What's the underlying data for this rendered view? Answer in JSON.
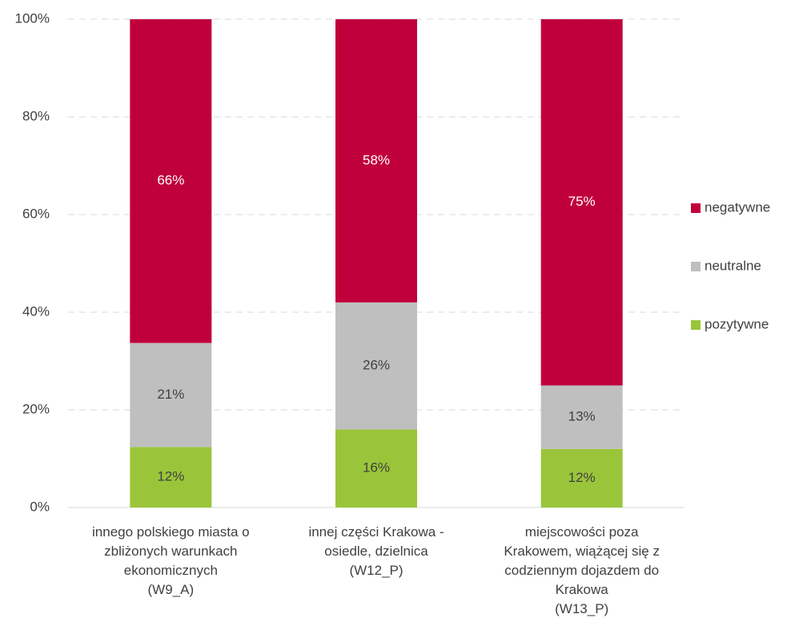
{
  "chart_data": {
    "type": "stacked_bar",
    "categories": [
      [
        "innego polskiego miasta o",
        "zbliżonych warunkach",
        "ekonomicznych",
        "(W9_A)"
      ],
      [
        "innej części Krakowa -",
        "osiedle, dzielnica",
        "(W12_P)"
      ],
      [
        "miejscowości poza",
        "Krakowem, wiążącej się z",
        "codziennym dojazdem do",
        "Krakowa",
        "(W13_P)"
      ]
    ],
    "series": [
      {
        "name": "pozytywne",
        "color": "#9ac53a",
        "values": [
          12.4,
          16,
          12
        ],
        "value_labels": [
          "12%",
          "16%",
          "12%"
        ]
      },
      {
        "name": "neutralne",
        "color": "#bfbfbf",
        "values": [
          21.3,
          26,
          13
        ],
        "value_labels": [
          "21%",
          "26%",
          "13%"
        ]
      },
      {
        "name": "negatywne",
        "color": "#c0003c",
        "values": [
          66.3,
          58,
          75
        ],
        "value_labels": [
          "66%",
          "58%",
          "75%"
        ]
      }
    ],
    "ylim": [
      0,
      100
    ],
    "yticks": [
      {
        "value": 0,
        "label": "0%"
      },
      {
        "value": 20,
        "label": "20%"
      },
      {
        "value": 40,
        "label": "40%"
      },
      {
        "value": 60,
        "label": "60%"
      },
      {
        "value": 80,
        "label": "80%"
      },
      {
        "value": 100,
        "label": "100%"
      }
    ],
    "grid": true,
    "legend": "right"
  }
}
